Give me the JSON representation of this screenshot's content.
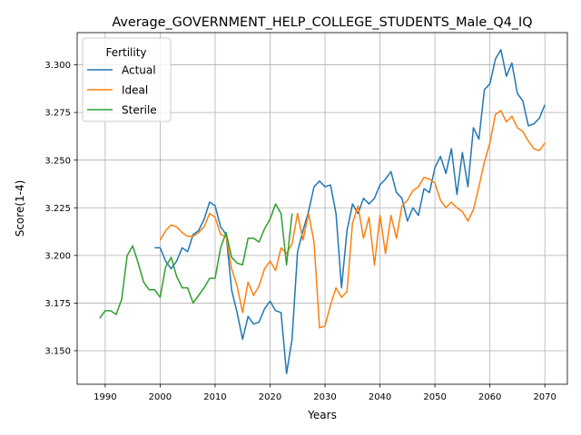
{
  "chart_data": {
    "type": "line",
    "title": "Average_GOVERNMENT_HELP_COLLEGE_STUDENTS_Male_Q4_IQ",
    "xlabel": "Years",
    "ylabel": "Score(1-4)",
    "xlim": [
      1984.9,
      2074.1
    ],
    "ylim": [
      3.1324,
      3.3169
    ],
    "xticks": [
      1990,
      2000,
      2010,
      2020,
      2030,
      2040,
      2050,
      2060,
      2070
    ],
    "xtick_labels": [
      "1990",
      "2000",
      "2010",
      "2020",
      "2030",
      "2040",
      "2050",
      "2060",
      "2070"
    ],
    "yticks": [
      3.15,
      3.175,
      3.2,
      3.225,
      3.25,
      3.275,
      3.3
    ],
    "ytick_labels": [
      "3.150",
      "3.175",
      "3.200",
      "3.225",
      "3.250",
      "3.275",
      "3.300"
    ],
    "grid": true,
    "legend": {
      "title": "Fertility",
      "position": "top-left"
    },
    "series": [
      {
        "name": "Actual",
        "color": "#1f77b4",
        "x": [
          1999,
          2000,
          2001,
          2002,
          2003,
          2004,
          2005,
          2006,
          2007,
          2008,
          2009,
          2010,
          2011,
          2012,
          2013,
          2014,
          2015,
          2016,
          2017,
          2018,
          2019,
          2020,
          2021,
          2022,
          2023,
          2024,
          2025,
          2026,
          2027,
          2028,
          2029,
          2030,
          2031,
          2032,
          2033,
          2034,
          2035,
          2036,
          2037,
          2038,
          2039,
          2040,
          2041,
          2042,
          2043,
          2044,
          2045,
          2046,
          2047,
          2048,
          2049,
          2050,
          2051,
          2052,
          2053,
          2054,
          2055,
          2056,
          2057,
          2058,
          2059,
          2060,
          2061,
          2062,
          2063,
          2064,
          2065,
          2066,
          2067,
          2068,
          2069,
          2070
        ],
        "y": [
          3.204,
          3.204,
          3.197,
          3.193,
          3.197,
          3.204,
          3.202,
          3.211,
          3.213,
          3.219,
          3.228,
          3.226,
          3.215,
          3.211,
          3.182,
          3.17,
          3.156,
          3.168,
          3.164,
          3.165,
          3.172,
          3.176,
          3.171,
          3.17,
          3.138,
          3.156,
          3.202,
          3.213,
          3.223,
          3.236,
          3.239,
          3.236,
          3.237,
          3.222,
          3.183,
          3.213,
          3.227,
          3.222,
          3.23,
          3.227,
          3.23,
          3.237,
          3.24,
          3.244,
          3.233,
          3.23,
          3.218,
          3.225,
          3.221,
          3.235,
          3.233,
          3.246,
          3.252,
          3.243,
          3.256,
          3.232,
          3.254,
          3.236,
          3.267,
          3.261,
          3.287,
          3.29,
          3.303,
          3.308,
          3.294,
          3.301,
          3.285,
          3.281,
          3.268,
          3.269,
          3.272,
          3.279
        ]
      },
      {
        "name": "Ideal",
        "color": "#ff7f0e",
        "x": [
          2000,
          2001,
          2002,
          2003,
          2004,
          2005,
          2006,
          2007,
          2008,
          2009,
          2010,
          2011,
          2012,
          2013,
          2014,
          2015,
          2016,
          2017,
          2018,
          2019,
          2020,
          2021,
          2022,
          2023,
          2024,
          2025,
          2026,
          2027,
          2028,
          2029,
          2030,
          2031,
          2032,
          2033,
          2034,
          2035,
          2036,
          2037,
          2038,
          2039,
          2040,
          2041,
          2042,
          2043,
          2044,
          2045,
          2046,
          2047,
          2048,
          2049,
          2050,
          2051,
          2052,
          2053,
          2054,
          2055,
          2056,
          2057,
          2058,
          2059,
          2060,
          2061,
          2062,
          2063,
          2064,
          2065,
          2066,
          2067,
          2068,
          2069,
          2070
        ],
        "y": [
          3.208,
          3.213,
          3.216,
          3.215,
          3.212,
          3.21,
          3.21,
          3.212,
          3.215,
          3.222,
          3.22,
          3.211,
          3.21,
          3.193,
          3.184,
          3.17,
          3.186,
          3.179,
          3.184,
          3.193,
          3.197,
          3.192,
          3.204,
          3.201,
          3.206,
          3.222,
          3.208,
          3.222,
          3.207,
          3.162,
          3.163,
          3.174,
          3.183,
          3.178,
          3.181,
          3.217,
          3.226,
          3.209,
          3.22,
          3.195,
          3.221,
          3.201,
          3.221,
          3.209,
          3.226,
          3.229,
          3.234,
          3.236,
          3.241,
          3.24,
          3.238,
          3.229,
          3.225,
          3.228,
          3.225,
          3.223,
          3.218,
          3.224,
          3.236,
          3.249,
          3.259,
          3.274,
          3.276,
          3.27,
          3.273,
          3.267,
          3.265,
          3.26,
          3.256,
          3.255,
          3.259
        ]
      },
      {
        "name": "Sterile",
        "color": "#2ca02c",
        "x": [
          1989,
          1990,
          1991,
          1992,
          1993,
          1994,
          1995,
          1996,
          1997,
          1998,
          1999,
          2000,
          2001,
          2002,
          2003,
          2004,
          2005,
          2006,
          2007,
          2008,
          2009,
          2010,
          2011,
          2012,
          2013,
          2014,
          2015,
          2016,
          2017,
          2018,
          2019,
          2020,
          2021,
          2022,
          2023,
          2024
        ],
        "y": [
          3.167,
          3.171,
          3.171,
          3.169,
          3.177,
          3.2,
          3.205,
          3.196,
          3.186,
          3.182,
          3.182,
          3.178,
          3.194,
          3.199,
          3.189,
          3.183,
          3.183,
          3.175,
          3.179,
          3.183,
          3.188,
          3.188,
          3.204,
          3.212,
          3.199,
          3.196,
          3.195,
          3.209,
          3.209,
          3.207,
          3.214,
          3.219,
          3.227,
          3.222,
          3.195,
          3.222
        ]
      }
    ]
  }
}
